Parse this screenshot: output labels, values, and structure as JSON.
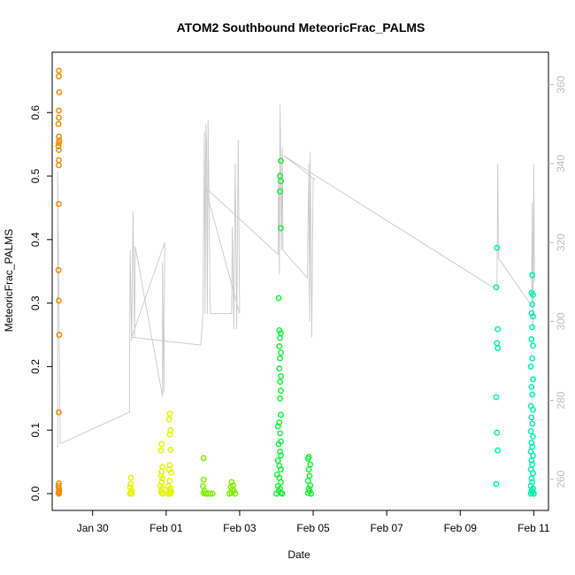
{
  "chart_data": {
    "type": "scatter",
    "title": "ATOM2 Southbound MeteoricFrac_PALMS",
    "xlabel": "Date",
    "ylabel": "MeteoricFrac_PALMS",
    "x_tick_labels": [
      "Jan 30",
      "Feb 01",
      "Feb 03",
      "Feb 05",
      "Feb 07",
      "Feb 09",
      "Feb 11"
    ],
    "x_tick_days": [
      30,
      32,
      34,
      36,
      38,
      40,
      42
    ],
    "xlim": [
      28.9,
      42.4
    ],
    "ylim": [
      0,
      0.67
    ],
    "y_ticks": [
      0.0,
      0.1,
      0.2,
      0.3,
      0.4,
      0.5,
      0.6
    ],
    "y_tick_labels": [
      "0.0",
      "0.1",
      "0.2",
      "0.3",
      "0.4",
      "0.5",
      "0.6"
    ],
    "y2lim": [
      253,
      368
    ],
    "y2_ticks": [
      260,
      280,
      300,
      320,
      340,
      360
    ],
    "y2_tick_labels": [
      "260",
      "280",
      "300",
      "320",
      "340",
      "360"
    ],
    "secondary_line_color": "#c8c8c8",
    "grid": false,
    "series": [
      {
        "color": "#f08a00",
        "points": [
          [
            29.08,
            0.666
          ],
          [
            29.08,
            0.657
          ],
          [
            29.09,
            0.632
          ],
          [
            29.08,
            0.603
          ],
          [
            29.08,
            0.592
          ],
          [
            29.07,
            0.582
          ],
          [
            29.08,
            0.562
          ],
          [
            29.09,
            0.556
          ],
          [
            29.08,
            0.552
          ],
          [
            29.07,
            0.547
          ],
          [
            29.08,
            0.541
          ],
          [
            29.08,
            0.525
          ],
          [
            29.08,
            0.517
          ],
          [
            29.08,
            0.456
          ],
          [
            29.07,
            0.352
          ],
          [
            29.08,
            0.304
          ],
          [
            29.09,
            0.25
          ],
          [
            29.08,
            0.128
          ],
          [
            29.08,
            0.016
          ],
          [
            29.07,
            0.012
          ],
          [
            29.08,
            0.008
          ],
          [
            29.09,
            0.005
          ],
          [
            29.08,
            0.003
          ],
          [
            29.07,
            0.001
          ],
          [
            29.08,
            0.0
          ]
        ]
      },
      {
        "color": "#e2f400",
        "points": [
          [
            32.1,
            0.126
          ],
          [
            32.08,
            0.117
          ],
          [
            32.12,
            0.1
          ],
          [
            32.1,
            0.093
          ],
          [
            32.12,
            0.069
          ],
          [
            32.1,
            0.045
          ],
          [
            32.08,
            0.038
          ],
          [
            32.14,
            0.033
          ],
          [
            32.1,
            0.02
          ],
          [
            32.06,
            0.012
          ],
          [
            32.12,
            0.008
          ],
          [
            32.08,
            0.005
          ],
          [
            32.14,
            0.003
          ],
          [
            32.1,
            0.001
          ],
          [
            32.06,
            0.0
          ],
          [
            32.12,
            0.0
          ],
          [
            31.04,
            0.025
          ],
          [
            31.04,
            0.015
          ],
          [
            31.02,
            0.01
          ],
          [
            31.06,
            0.005
          ],
          [
            31.04,
            0.002
          ],
          [
            31.02,
            0.0
          ],
          [
            31.06,
            0.0
          ],
          [
            31.88,
            0.078
          ],
          [
            31.86,
            0.068
          ],
          [
            31.9,
            0.042
          ],
          [
            31.88,
            0.035
          ],
          [
            31.86,
            0.028
          ],
          [
            31.9,
            0.024
          ],
          [
            31.88,
            0.018
          ],
          [
            31.84,
            0.012
          ],
          [
            31.9,
            0.008
          ],
          [
            31.86,
            0.004
          ],
          [
            31.88,
            0.001
          ],
          [
            31.92,
            0.0
          ]
        ]
      },
      {
        "color": "#7ded00",
        "points": [
          [
            33.02,
            0.056
          ],
          [
            33.02,
            0.022
          ],
          [
            33.0,
            0.012
          ],
          [
            33.04,
            0.004
          ],
          [
            33.02,
            0.001
          ],
          [
            33.08,
            0.0
          ],
          [
            33.14,
            0.0
          ],
          [
            33.2,
            0.0
          ],
          [
            33.26,
            0.0
          ],
          [
            33.78,
            0.018
          ],
          [
            33.82,
            0.013
          ],
          [
            33.76,
            0.01
          ],
          [
            33.8,
            0.006
          ],
          [
            33.84,
            0.004
          ],
          [
            33.78,
            0.001
          ],
          [
            33.72,
            0.0
          ],
          [
            33.88,
            0.0
          ]
        ]
      },
      {
        "color": "#18ee3a",
        "points": [
          [
            35.12,
            0.524
          ],
          [
            35.1,
            0.5
          ],
          [
            35.12,
            0.492
          ],
          [
            35.1,
            0.476
          ],
          [
            35.12,
            0.418
          ],
          [
            35.06,
            0.308
          ],
          [
            35.08,
            0.257
          ],
          [
            35.12,
            0.253
          ],
          [
            35.1,
            0.245
          ],
          [
            35.08,
            0.232
          ],
          [
            35.12,
            0.222
          ],
          [
            35.1,
            0.213
          ],
          [
            35.08,
            0.197
          ],
          [
            35.12,
            0.185
          ],
          [
            35.1,
            0.176
          ],
          [
            35.12,
            0.162
          ],
          [
            35.1,
            0.15
          ],
          [
            35.12,
            0.124
          ],
          [
            35.08,
            0.112
          ],
          [
            35.04,
            0.106
          ],
          [
            35.1,
            0.095
          ],
          [
            35.12,
            0.082
          ],
          [
            35.06,
            0.078
          ],
          [
            35.1,
            0.066
          ],
          [
            35.12,
            0.06
          ],
          [
            35.04,
            0.052
          ],
          [
            35.08,
            0.044
          ],
          [
            35.12,
            0.038
          ],
          [
            35.02,
            0.03
          ],
          [
            35.08,
            0.025
          ],
          [
            35.12,
            0.018
          ],
          [
            35.04,
            0.012
          ],
          [
            35.1,
            0.008
          ],
          [
            35.06,
            0.004
          ],
          [
            35.12,
            0.001
          ],
          [
            35.0,
            0.0
          ],
          [
            35.16,
            0.0
          ],
          [
            35.88,
            0.058
          ],
          [
            35.86,
            0.055
          ],
          [
            35.92,
            0.046
          ],
          [
            35.88,
            0.038
          ],
          [
            35.9,
            0.028
          ],
          [
            35.86,
            0.02
          ],
          [
            35.92,
            0.013
          ],
          [
            35.88,
            0.008
          ],
          [
            35.9,
            0.004
          ],
          [
            35.86,
            0.001
          ],
          [
            35.94,
            0.0
          ]
        ]
      },
      {
        "color": "#00eeaa",
        "points": [
          [
            41.0,
            0.387
          ],
          [
            40.98,
            0.325
          ],
          [
            41.02,
            0.259
          ],
          [
            41.0,
            0.237
          ],
          [
            41.02,
            0.229
          ],
          [
            40.98,
            0.152
          ],
          [
            41.0,
            0.096
          ],
          [
            41.02,
            0.068
          ],
          [
            40.98,
            0.015
          ],
          [
            41.96,
            0.344
          ],
          [
            41.94,
            0.316
          ],
          [
            41.98,
            0.313
          ],
          [
            41.96,
            0.298
          ],
          [
            41.94,
            0.284
          ],
          [
            41.98,
            0.279
          ],
          [
            41.96,
            0.262
          ],
          [
            41.94,
            0.243
          ],
          [
            41.98,
            0.233
          ],
          [
            41.96,
            0.213
          ],
          [
            41.92,
            0.2
          ],
          [
            41.98,
            0.18
          ],
          [
            41.94,
            0.168
          ],
          [
            41.96,
            0.156
          ],
          [
            41.92,
            0.138
          ],
          [
            41.98,
            0.132
          ],
          [
            41.94,
            0.12
          ],
          [
            41.96,
            0.11
          ],
          [
            41.92,
            0.098
          ],
          [
            41.98,
            0.09
          ],
          [
            41.94,
            0.08
          ],
          [
            41.96,
            0.074
          ],
          [
            41.92,
            0.066
          ],
          [
            41.98,
            0.06
          ],
          [
            41.94,
            0.052
          ],
          [
            41.96,
            0.046
          ],
          [
            41.92,
            0.038
          ],
          [
            41.98,
            0.032
          ],
          [
            41.94,
            0.024
          ],
          [
            41.96,
            0.018
          ],
          [
            41.92,
            0.012
          ],
          [
            41.98,
            0.008
          ],
          [
            41.94,
            0.005
          ],
          [
            41.96,
            0.002
          ],
          [
            41.92,
            0.0
          ],
          [
            42.0,
            0.0
          ]
        ]
      }
    ],
    "secondary_line": {
      "color": "#c8c8c8",
      "values": [
        [
          29.05,
          268
        ],
        [
          29.05,
          338
        ],
        [
          29.12,
          269
        ],
        [
          31.0,
          277
        ],
        [
          31.02,
          318
        ],
        [
          31.06,
          295
        ],
        [
          31.1,
          328
        ],
        [
          31.14,
          296
        ],
        [
          31.16,
          319
        ],
        [
          31.9,
          281
        ],
        [
          31.9,
          315
        ],
        [
          31.94,
          282
        ],
        [
          31.96,
          320
        ],
        [
          31.06,
          296
        ],
        [
          32.94,
          294
        ],
        [
          33.0,
          302
        ],
        [
          33.04,
          348
        ],
        [
          33.06,
          302
        ],
        [
          33.08,
          350
        ],
        [
          33.1,
          345
        ],
        [
          33.12,
          302
        ],
        [
          33.14,
          351
        ],
        [
          33.2,
          302
        ],
        [
          33.78,
          302
        ],
        [
          33.8,
          324
        ],
        [
          33.84,
          298
        ],
        [
          33.88,
          340
        ],
        [
          33.92,
          298
        ],
        [
          33.96,
          346
        ],
        [
          34.0,
          302
        ],
        [
          33.06,
          334
        ],
        [
          35.04,
          317
        ],
        [
          35.06,
          338
        ],
        [
          35.08,
          312
        ],
        [
          35.1,
          355
        ],
        [
          35.14,
          318
        ],
        [
          35.16,
          344
        ],
        [
          35.18,
          318
        ],
        [
          35.84,
          311
        ],
        [
          35.88,
          340
        ],
        [
          35.9,
          300
        ],
        [
          35.92,
          343
        ],
        [
          35.96,
          296
        ],
        [
          36.0,
          336
        ],
        [
          36.04,
          336
        ],
        [
          35.2,
          342
        ],
        [
          41.0,
          308
        ],
        [
          41.02,
          340
        ],
        [
          41.04,
          316
        ],
        [
          41.94,
          304
        ],
        [
          41.96,
          330
        ],
        [
          41.98,
          298
        ],
        [
          42.0,
          340
        ],
        [
          42.02,
          310
        ]
      ]
    }
  }
}
